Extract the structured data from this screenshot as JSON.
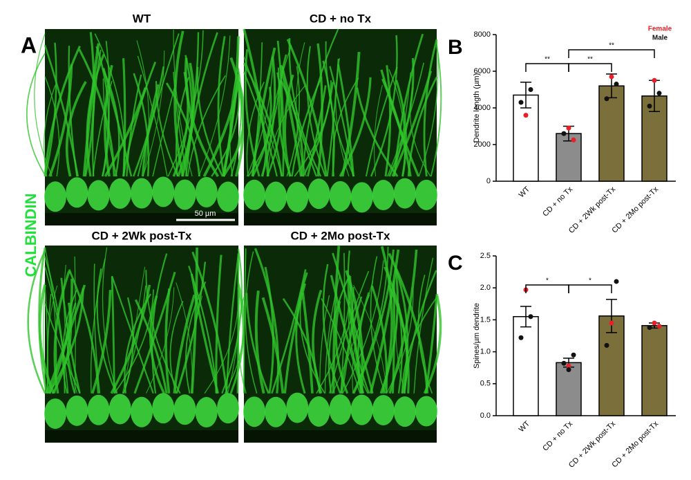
{
  "panel_a": {
    "label": "A",
    "stain": "CALBINDIN",
    "scale_bar": "50 µm",
    "images": [
      {
        "title": "WT"
      },
      {
        "title": "CD + no Tx"
      },
      {
        "title": "CD + 2Wk post-Tx"
      },
      {
        "title": "CD + 2Mo post-Tx"
      }
    ]
  },
  "chart_data": [
    {
      "type": "bar",
      "panel": "B",
      "y_label": "Dendrite length (µm)",
      "categories": [
        "WT",
        "CD + no Tx",
        "CD + 2Wk post-Tx",
        "CD + 2Mo post-Tx"
      ],
      "values": [
        4700,
        2600,
        5200,
        4650
      ],
      "errors": [
        700,
        400,
        650,
        850
      ],
      "colors": [
        "#ffffff",
        "#8c8c8c",
        "#7b6f3b",
        "#7b6f3b"
      ],
      "ylim": [
        0,
        8000
      ],
      "yticks": [
        0,
        2000,
        4000,
        6000,
        8000
      ],
      "legend": "top-right",
      "series": [
        {
          "name": "Female",
          "color": "#e8202a",
          "points": [
            [
              0,
              3600
            ],
            [
              1,
              2900
            ],
            [
              1,
              2250
            ],
            [
              2,
              5700
            ],
            [
              3,
              5500
            ]
          ]
        },
        {
          "name": "Male",
          "color": "#111111",
          "points": [
            [
              0,
              5000
            ],
            [
              0,
              4300
            ],
            [
              1,
              2600
            ],
            [
              2,
              5300
            ],
            [
              2,
              4500
            ],
            [
              3,
              4800
            ],
            [
              3,
              4100
            ]
          ]
        }
      ],
      "annotations": [
        {
          "from": 0,
          "to": 1,
          "text": "**"
        },
        {
          "from": 1,
          "to": 2,
          "text": "**"
        },
        {
          "from": 1,
          "to": 3,
          "text": "**"
        }
      ]
    },
    {
      "type": "bar",
      "panel": "C",
      "y_label": "Spines/µm dendrite",
      "categories": [
        "WT",
        "CD + no Tx",
        "CD + 2Wk post-Tx",
        "CD + 2Mo post-Tx"
      ],
      "values": [
        1.55,
        0.83,
        1.56,
        1.41
      ],
      "errors": [
        0.16,
        0.07,
        0.26,
        0.04
      ],
      "colors": [
        "#ffffff",
        "#8c8c8c",
        "#7b6f3b",
        "#7b6f3b"
      ],
      "ylim": [
        0,
        2.5
      ],
      "yticks": [
        {
          "value": 0,
          "label": "0.0"
        },
        0.5,
        {
          "value": 1,
          "label": "1.0"
        },
        1.5,
        {
          "value": 2,
          "label": "2.0"
        },
        2.5
      ],
      "series": [
        {
          "name": "Female",
          "color": "#e8202a",
          "points": [
            [
              0,
              1.97
            ],
            [
              1,
              0.78
            ],
            [
              2,
              1.45
            ],
            [
              3,
              1.45
            ],
            [
              3,
              1.4
            ]
          ]
        },
        {
          "name": "Male",
          "color": "#111111",
          "points": [
            [
              0,
              1.55
            ],
            [
              0,
              1.22
            ],
            [
              1,
              0.95
            ],
            [
              1,
              0.82
            ],
            [
              1,
              0.72
            ],
            [
              2,
              2.1
            ],
            [
              2,
              1.1
            ],
            [
              3,
              1.38
            ]
          ]
        }
      ],
      "annotations": [
        {
          "from": 0,
          "to": 1,
          "text": "*"
        },
        {
          "from": 1,
          "to": 2,
          "text": "*"
        }
      ]
    }
  ]
}
